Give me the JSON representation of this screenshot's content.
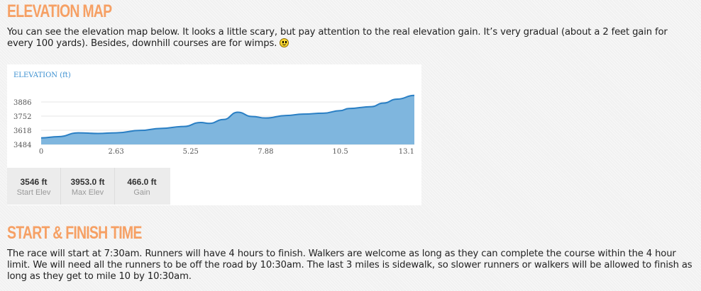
{
  "section1": {
    "heading": "ELEVATION MAP",
    "text": "You can see the elevation map below. It looks a little scary, but pay attention to the real elevation gain. It’s very gradual (about a 2 feet gain for every 100 yards). Besides, downhill courses are for wimps.",
    "emoticon": "smiley-icon"
  },
  "chart_data": {
    "type": "area",
    "title": "ELEVATION (ft)",
    "xlabel": "",
    "ylabel": "",
    "xlim": [
      0,
      13.1
    ],
    "ylim": [
      3484,
      3960
    ],
    "xticks": [
      "0",
      "2.63",
      "5.25",
      "7.88",
      "10.5",
      "13.1"
    ],
    "yticks": [
      "3484",
      "3618",
      "3752",
      "3886"
    ],
    "grid": true,
    "color": "#2a7fc4",
    "x": [
      0,
      0.6,
      1.3,
      2.0,
      2.63,
      3.5,
      4.2,
      5.0,
      5.6,
      5.9,
      6.4,
      6.9,
      7.4,
      7.88,
      8.6,
      9.2,
      9.9,
      10.5,
      10.8,
      11.6,
      12.0,
      12.5,
      13.1
    ],
    "y": [
      3546,
      3558,
      3594,
      3588,
      3594,
      3617,
      3636,
      3654,
      3692,
      3683,
      3720,
      3789,
      3749,
      3734,
      3758,
      3771,
      3780,
      3804,
      3824,
      3842,
      3875,
      3913,
      3948
    ]
  },
  "stats": [
    {
      "value": "3546 ft",
      "label": "Start Elev"
    },
    {
      "value": "3953.0 ft",
      "label": "Max Elev"
    },
    {
      "value": "466.0 ft",
      "label": "Gain"
    }
  ],
  "section2": {
    "heading": "START & FINISH TIME",
    "text": "The race will start at 7:30am. Runners will have 4 hours to finish. Walkers are welcome as long as they can complete the course within the 4 hour limit. We will need all the runners to be off the road by 10:30am. The last 3 miles is sidewalk, so slower runners or walkers will be allowed to finish as long as they get to mile 10 by 10:30am."
  }
}
